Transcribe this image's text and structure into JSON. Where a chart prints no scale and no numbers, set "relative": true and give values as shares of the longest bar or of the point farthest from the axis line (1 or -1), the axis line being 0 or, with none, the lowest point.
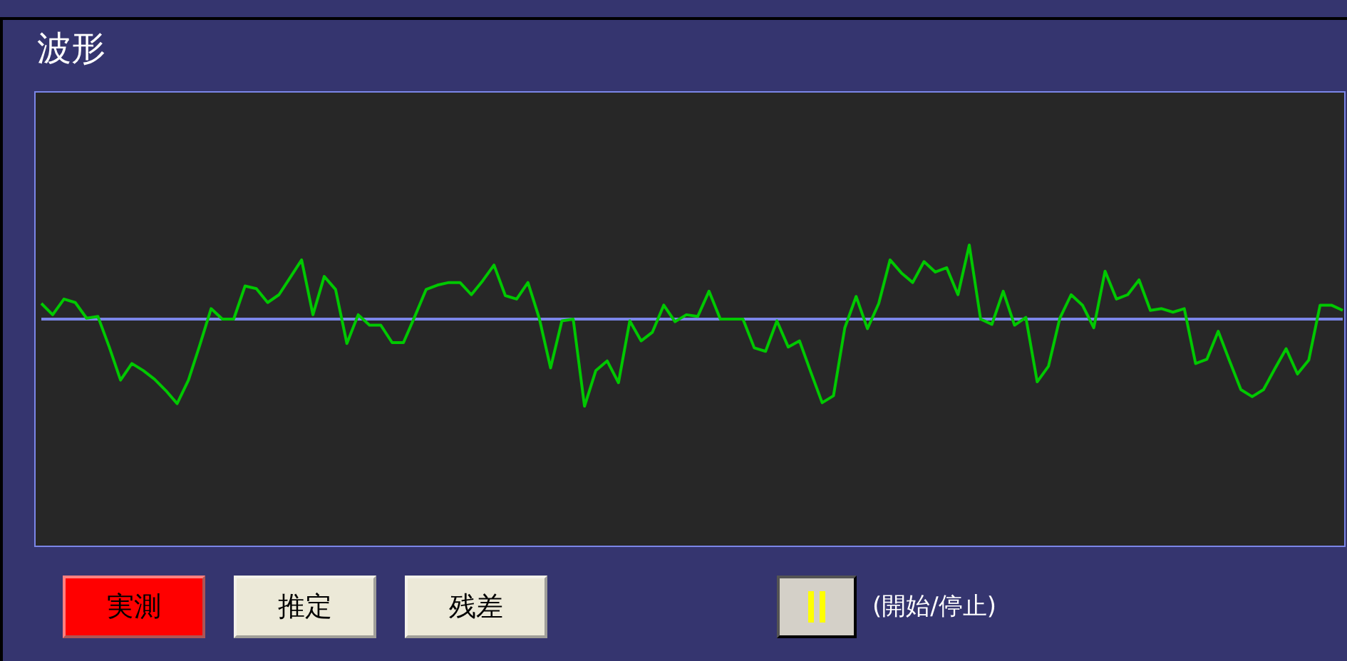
{
  "chart_data": {
    "type": "line",
    "title": "波形",
    "relative": true,
    "color": "#00c800",
    "categories": [
      null,
      null,
      null,
      null,
      null,
      null,
      null,
      null,
      null,
      null,
      null,
      null,
      null,
      null,
      null,
      null,
      null,
      null,
      null,
      null,
      null,
      null,
      null,
      null,
      null,
      null,
      null,
      null,
      null,
      null,
      null,
      null,
      null,
      null,
      null,
      null,
      null,
      null,
      null,
      null,
      null,
      null,
      null,
      null,
      null,
      null,
      null,
      null,
      null,
      null,
      null,
      null,
      null,
      null,
      null,
      null,
      null,
      null,
      null,
      null,
      null,
      null,
      null,
      null,
      null,
      null,
      null,
      null,
      null,
      null,
      null,
      null,
      null,
      null,
      null,
      null,
      null,
      null,
      null,
      null,
      null,
      null,
      null,
      null,
      null,
      null,
      null,
      null,
      null,
      null,
      null,
      null,
      null,
      null,
      null,
      null,
      null,
      null,
      null,
      null,
      null,
      null,
      null,
      null,
      null,
      null,
      null,
      null,
      null,
      null,
      null,
      null,
      null,
      null,
      null,
      null
    ],
    "values": [
      0.18,
      0.05,
      0.23,
      0.19,
      0.01,
      0.03,
      -0.32,
      -0.7,
      -0.51,
      -0.59,
      -0.69,
      -0.82,
      -0.97,
      -0.7,
      -0.3,
      0.12,
      0,
      0,
      0.38,
      0.35,
      0.19,
      0.28,
      0.48,
      0.68,
      0.05,
      0.49,
      0.34,
      -0.28,
      0.05,
      -0.07,
      -0.07,
      -0.27,
      -0.27,
      0.03,
      0.34,
      0.39,
      0.42,
      0.42,
      0.28,
      0.44,
      0.62,
      0.27,
      0.23,
      0.42,
      0.01,
      -0.56,
      -0.02,
      0,
      -1,
      -0.59,
      -0.48,
      -0.73,
      -0.02,
      -0.25,
      -0.15,
      0.16,
      -0.03,
      0.05,
      0.03,
      0.32,
      0,
      0,
      0,
      -0.33,
      -0.37,
      -0.02,
      -0.32,
      -0.25,
      -0.61,
      -0.96,
      -0.88,
      -0.1,
      0.26,
      -0.11,
      0.18,
      0.68,
      0.53,
      0.42,
      0.66,
      0.54,
      0.59,
      0.28,
      0.85,
      0,
      -0.06,
      0.32,
      -0.07,
      0.02,
      -0.72,
      -0.54,
      0.01,
      0.28,
      0.16,
      -0.1,
      0.55,
      0.23,
      0.28,
      0.45,
      0.1,
      0.12,
      0.08,
      0.12,
      -0.51,
      -0.46,
      -0.14,
      -0.48,
      -0.81,
      -0.89,
      -0.81,
      -0.57,
      -0.34,
      -0.63,
      -0.47,
      0.16,
      0.16,
      0.1
    ],
    "ref_lines": [
      {
        "axis": "y",
        "value": 0,
        "color": "#7b86e8"
      }
    ],
    "annotations": [
      "実測",
      "推定",
      "残差",
      "(開始/停止)"
    ]
  }
}
